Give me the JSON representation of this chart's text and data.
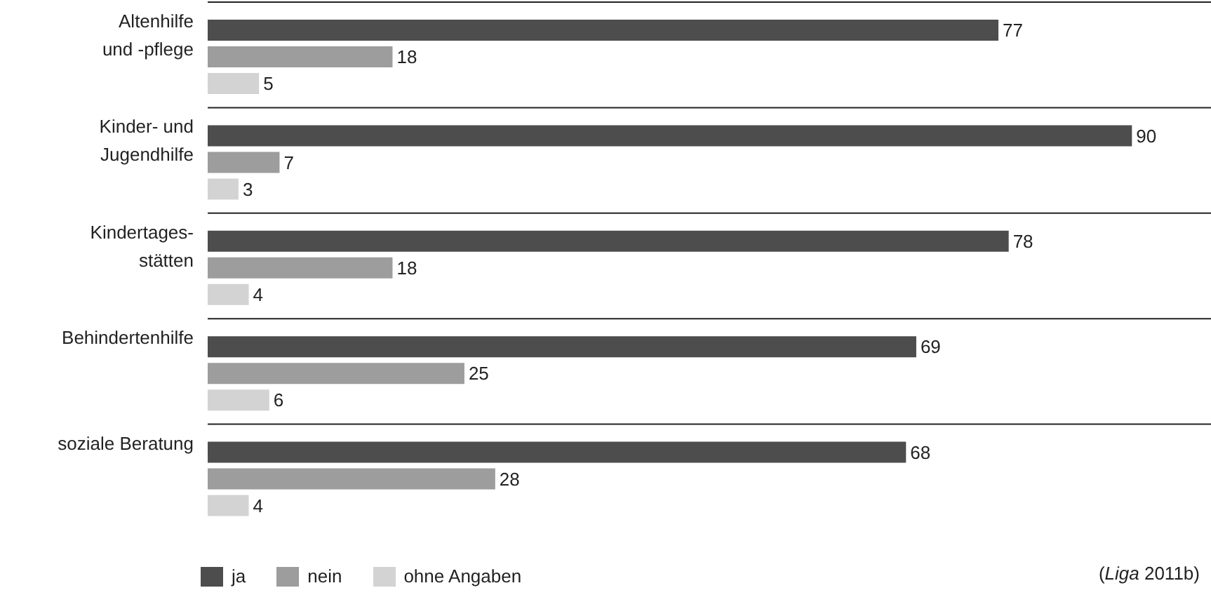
{
  "chart_data": {
    "type": "bar",
    "orientation": "horizontal",
    "tick_labels": false,
    "data_labels": true,
    "legend": "bottom",
    "categories": [
      "Altenhilfe\nund -pflege",
      "Kinder- und\nJugendhilfe",
      "Kindertages-\nstätten",
      "Behindertenhilfe",
      "soziale Beratung"
    ],
    "series": [
      {
        "name": "ja",
        "color": "#4d4d4d",
        "values": [
          77,
          90,
          78,
          69,
          68
        ]
      },
      {
        "name": "nein",
        "color": "#9d9d9d",
        "values": [
          18,
          7,
          18,
          25,
          28
        ]
      },
      {
        "name": "ohne Angaben",
        "color": "#d3d3d3",
        "values": [
          5,
          3,
          4,
          6,
          4
        ]
      }
    ],
    "annotations": [
      "(Liga 2011b)"
    ]
  }
}
